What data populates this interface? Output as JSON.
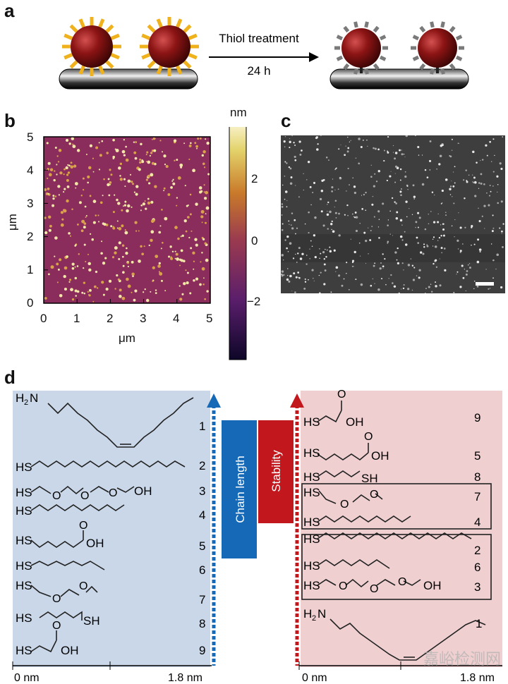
{
  "panels": {
    "a": {
      "label": "a",
      "arrow_top": "Thiol treatment",
      "arrow_bottom": "24 h"
    },
    "b": {
      "label": "b",
      "xlabel": "μm",
      "ylabel": "μm",
      "xticks": [
        "0",
        "1",
        "2",
        "3",
        "4",
        "5"
      ],
      "yticks": [
        "0",
        "1",
        "2",
        "3",
        "4",
        "5"
      ],
      "colorbar_unit": "nm",
      "colorbar_ticks": [
        "2",
        "0",
        "−2"
      ]
    },
    "c": {
      "label": "c"
    },
    "d": {
      "label": "d",
      "left_scale": {
        "start": "0 nm",
        "end": "1.8 nm"
      },
      "right_scale": {
        "start": "0 nm",
        "end": "1.8 nm"
      },
      "chain_length_label": "Chain length",
      "stability_label": "Stability",
      "left_ranks": [
        "1",
        "2",
        "3",
        "4",
        "5",
        "6",
        "7",
        "8",
        "9"
      ],
      "right_ranks": [
        "9",
        "5",
        "8",
        "7",
        "4",
        "2",
        "6",
        "3",
        "1"
      ],
      "atoms": {
        "HS": "HS",
        "SH": "SH",
        "O": "O",
        "OH": "OH",
        "H": "H",
        "N": "N",
        "sub2": "2"
      }
    }
  },
  "colors": {
    "left_bg": "#c9d7e8",
    "right_bg": "#efcfd0",
    "blue": "#1569b7",
    "red": "#c2171c",
    "afm_bg": "#8a2c5c",
    "particle": "#8c1414"
  },
  "watermark": "嘉峪检测网"
}
